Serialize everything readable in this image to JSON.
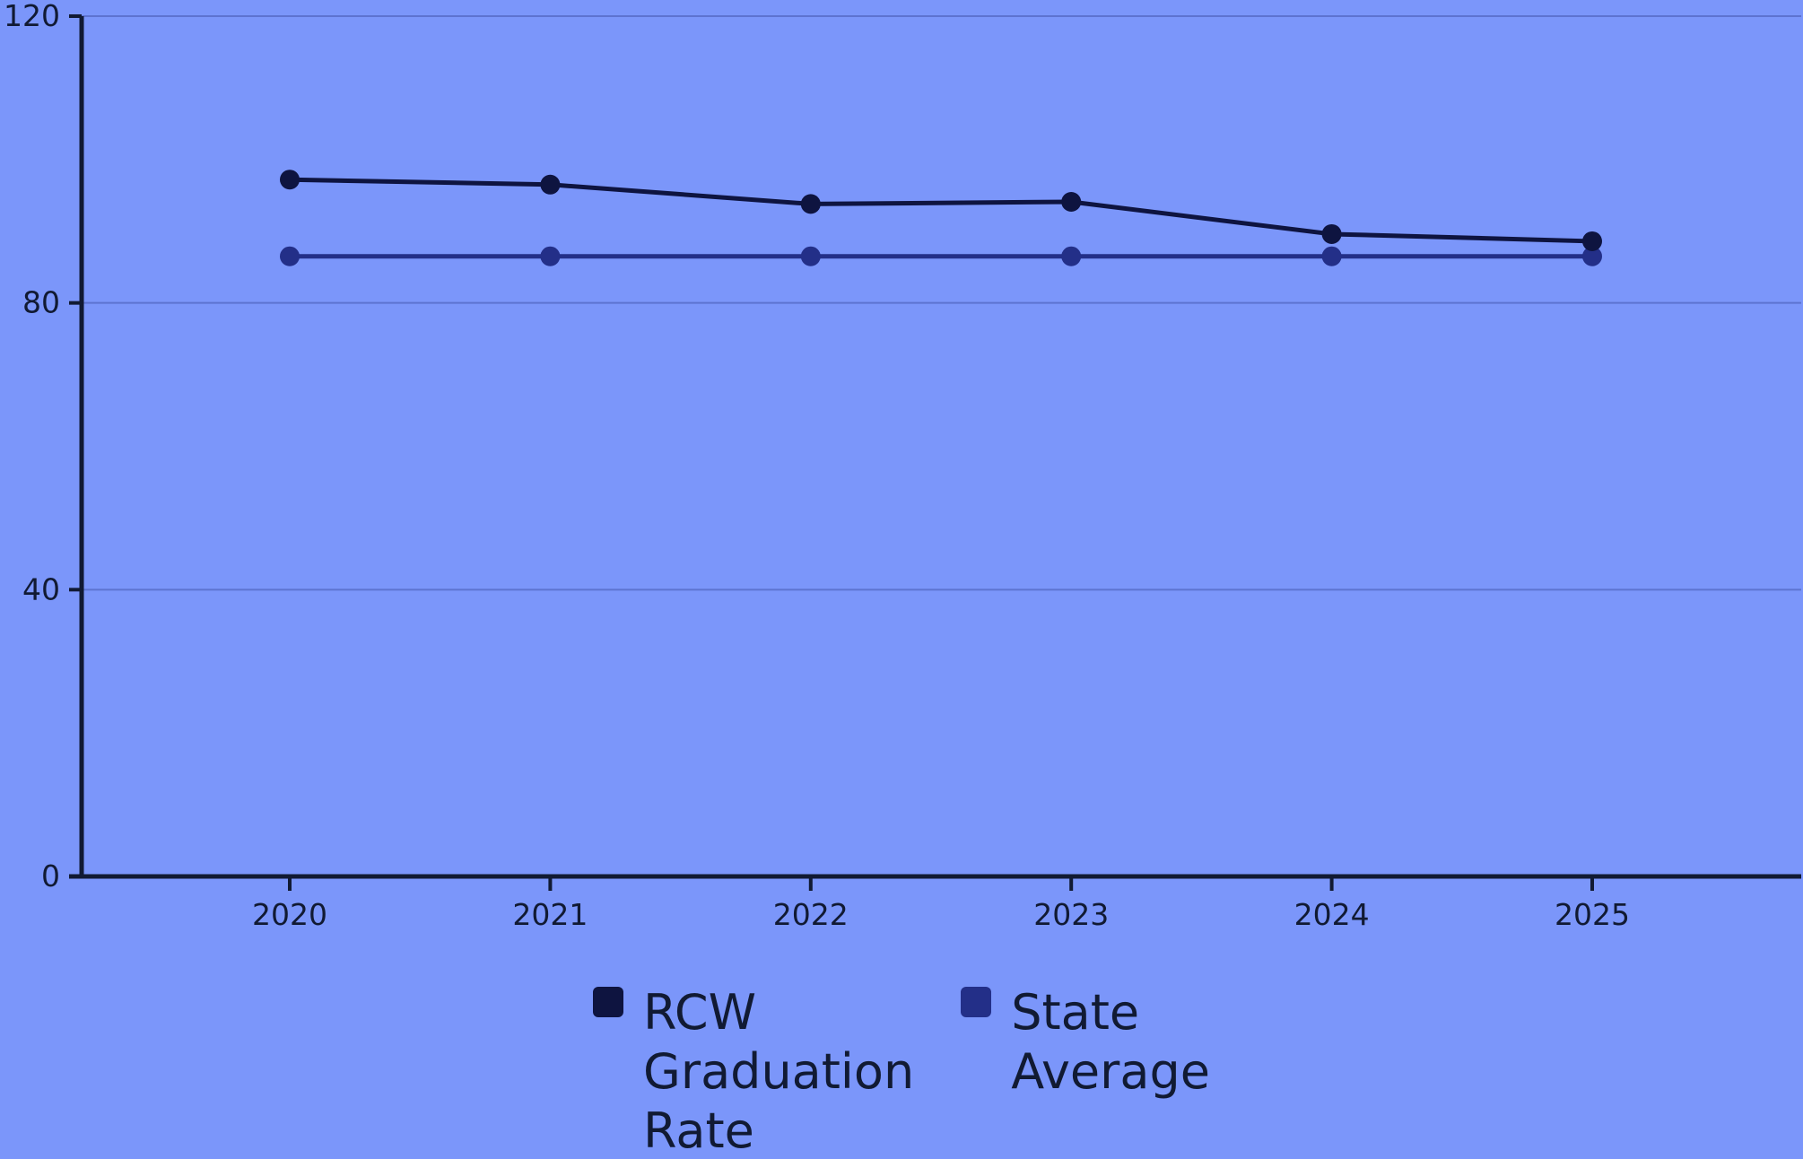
{
  "chart_data": {
    "type": "line",
    "categories": [
      "2020",
      "2021",
      "2022",
      "2023",
      "2024",
      "2025"
    ],
    "series": [
      {
        "name": "RCW Graduation Rate",
        "values": [
          97.2,
          96.5,
          93.8,
          94.1,
          89.6,
          88.6
        ],
        "color": "#0e1440"
      },
      {
        "name": "State Average",
        "values": [
          86.5,
          86.5,
          86.5,
          86.5,
          86.5,
          86.5
        ],
        "color": "#232f88"
      }
    ],
    "y_ticks": [
      "0",
      "40",
      "80",
      "120"
    ],
    "ylim": [
      0,
      120
    ],
    "grid": true,
    "legend_position": "bottom"
  },
  "colors": {
    "background": "#7b96fa",
    "axis": "#111a33",
    "grid": "#5d73d0"
  },
  "legend": {
    "items": [
      {
        "label": "RCW\nGraduation\nRate",
        "color": "#0e1440"
      },
      {
        "label": "State\nAverage",
        "color": "#232f88"
      }
    ]
  }
}
